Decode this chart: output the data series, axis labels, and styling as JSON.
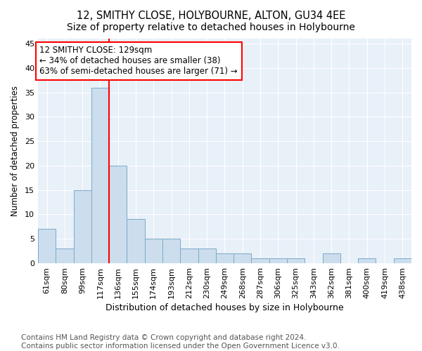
{
  "title": "12, SMITHY CLOSE, HOLYBOURNE, ALTON, GU34 4EE",
  "subtitle": "Size of property relative to detached houses in Holybourne",
  "xlabel": "Distribution of detached houses by size in Holybourne",
  "ylabel": "Number of detached properties",
  "bar_values": [
    7,
    3,
    15,
    36,
    20,
    9,
    5,
    5,
    3,
    3,
    2,
    2,
    1,
    1,
    1,
    0,
    2,
    0,
    1,
    0,
    1
  ],
  "bar_labels": [
    "61sqm",
    "80sqm",
    "99sqm",
    "117sqm",
    "136sqm",
    "155sqm",
    "174sqm",
    "193sqm",
    "212sqm",
    "230sqm",
    "249sqm",
    "268sqm",
    "287sqm",
    "306sqm",
    "325sqm",
    "343sqm",
    "362sqm",
    "381sqm",
    "400sqm",
    "419sqm",
    "438sqm"
  ],
  "bar_color": "#ccdded",
  "bar_edge_color": "#7baac8",
  "vline_x": 3.5,
  "vline_color": "red",
  "annotation_text_line1": "12 SMITHY CLOSE: 129sqm",
  "annotation_text_line2": "← 34% of detached houses are smaller (38)",
  "annotation_text_line3": "63% of semi-detached houses are larger (71) →",
  "annotation_box_color": "red",
  "ylim": [
    0,
    46
  ],
  "yticks": [
    0,
    5,
    10,
    15,
    20,
    25,
    30,
    35,
    40,
    45
  ],
  "background_color": "#e8f0f8",
  "footer_line1": "Contains HM Land Registry data © Crown copyright and database right 2024.",
  "footer_line2": "Contains public sector information licensed under the Open Government Licence v3.0.",
  "title_fontsize": 10.5,
  "xlabel_fontsize": 9,
  "ylabel_fontsize": 8.5,
  "tick_fontsize": 8,
  "annotation_fontsize": 8.5,
  "footer_fontsize": 7.5
}
